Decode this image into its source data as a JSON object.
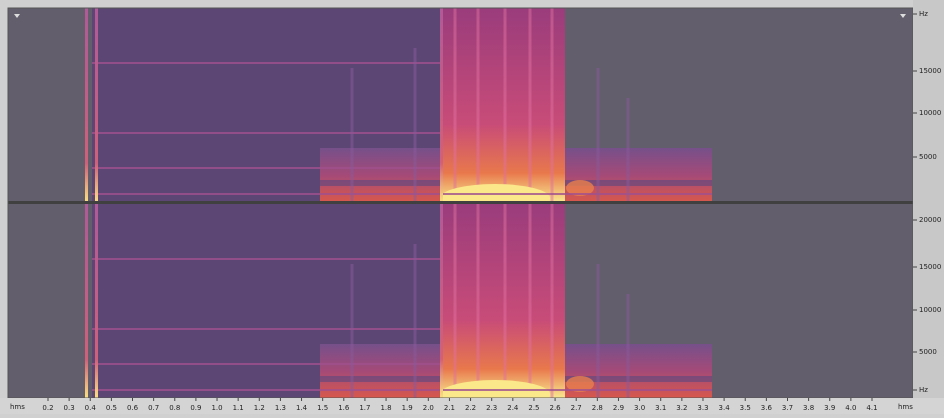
{
  "time_ruler": {
    "unit_start": "hms",
    "labels": [
      "0.2",
      "0.3",
      "0.4",
      "0.5",
      "0.6",
      "0.7",
      "0.8",
      "0.9",
      "1.0",
      "1.1",
      "1.2",
      "1.3",
      "1.4",
      "1.5",
      "1.6",
      "1.7",
      "1.8",
      "1.9",
      "2.0",
      "2.1",
      "2.2",
      "2.3",
      "2.4",
      "2.5",
      "2.6",
      "2.7",
      "2.8",
      "2.9",
      "3.0",
      "3.1",
      "3.2",
      "3.3",
      "3.4",
      "3.5",
      "3.6",
      "3.7",
      "3.8",
      "3.9",
      "4.0",
      "4.1"
    ],
    "unit_end": "hms"
  },
  "channels": [
    {
      "frequency_labels": [
        "Hz",
        "15000",
        "10000",
        "5000"
      ]
    },
    {
      "frequency_labels": [
        "20000",
        "15000",
        "10000",
        "5000",
        "Hz"
      ]
    }
  ]
}
